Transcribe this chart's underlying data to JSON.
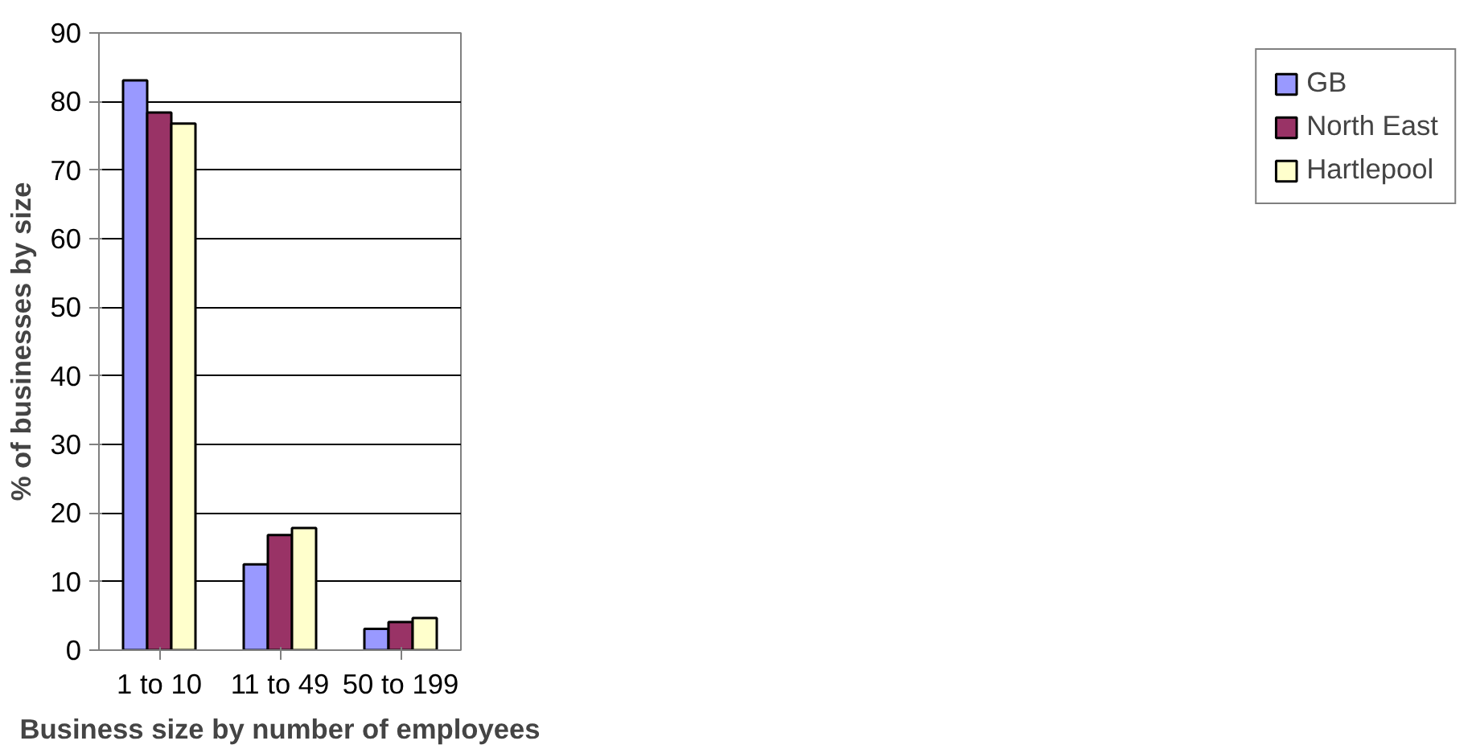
{
  "chart_data": {
    "type": "bar",
    "xlabel": "Business size by number of employees",
    "ylabel": "% of businesses by size",
    "categories": [
      "1 to 10",
      "11 to 49",
      "50 to 199"
    ],
    "series": [
      {
        "name": "GB",
        "color": "#9999ff",
        "values": [
          83.1,
          12.5,
          3.1
        ]
      },
      {
        "name": "North East",
        "color": "#993366",
        "values": [
          78.4,
          16.8,
          4.1
        ]
      },
      {
        "name": "Hartlepool",
        "color": "#ffffcc",
        "values": [
          76.8,
          17.8,
          4.7
        ]
      }
    ],
    "ylim": [
      0,
      90
    ],
    "yticks": [
      0,
      10,
      20,
      30,
      40,
      50,
      60,
      70,
      80,
      90
    ],
    "grid": "y",
    "legend": "right"
  }
}
